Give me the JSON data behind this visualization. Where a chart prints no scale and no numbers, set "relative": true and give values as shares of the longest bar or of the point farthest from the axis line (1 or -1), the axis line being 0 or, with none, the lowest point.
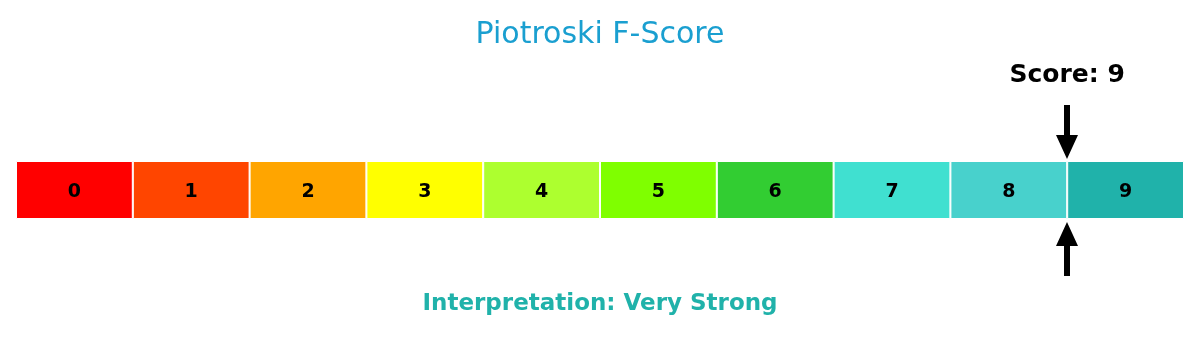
{
  "chart_data": {
    "type": "bar",
    "title": "Piotroski F-Score",
    "relative": true,
    "categories": [
      "0",
      "1",
      "2",
      "3",
      "4",
      "5",
      "6",
      "7",
      "8",
      "9"
    ],
    "values": [
      1,
      1,
      1,
      1,
      1,
      1,
      1,
      1,
      1,
      1
    ],
    "colors": [
      "#ff0000",
      "#ff4500",
      "#ffa500",
      "#ffff00",
      "#adff2f",
      "#7fff00",
      "#32cd32",
      "#40e0d0",
      "#48d1cc",
      "#20b2aa"
    ],
    "annotations": [
      "Score: 9",
      "Interpretation: Very Strong"
    ]
  }
}
